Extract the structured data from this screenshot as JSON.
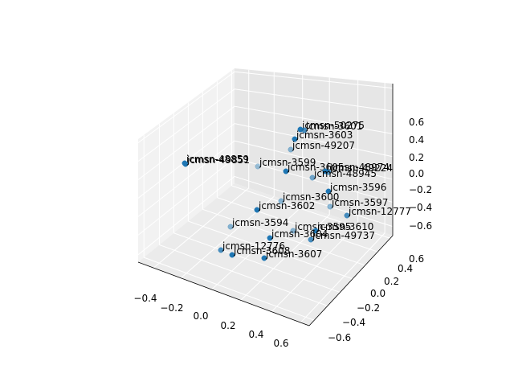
{
  "chart_data": {
    "type": "scatter",
    "projection": "3d",
    "grid": true,
    "title": "",
    "xlabel": "",
    "ylabel": "",
    "zlabel": "",
    "axis_x_ticks": [
      "−0.4",
      "−0.2",
      "0.0",
      "0.2",
      "0.4",
      "0.6"
    ],
    "axis_y_ticks": [
      "−0.6",
      "−0.4",
      "−0.2",
      "0.0",
      "0.2",
      "0.4",
      "0.6"
    ],
    "axis_z_ticks": [
      "−0.6",
      "−0.4",
      "−0.2",
      "0.0",
      "0.2",
      "0.4",
      "0.6"
    ],
    "marker_color": "#1f77b4",
    "points": [
      {
        "label": "jcmsn-50275"
      },
      {
        "label": "jcmsn-3601"
      },
      {
        "label": "jcmsn-3603"
      },
      {
        "label": "jcmsn-49207"
      },
      {
        "label": "jcmsn-48859"
      },
      {
        "label": "jcmsn-49851"
      },
      {
        "label": "jcmsn-3599"
      },
      {
        "label": "jcmsn-3605"
      },
      {
        "label": "jcmsn-48974"
      },
      {
        "label": "jcmsn-49224"
      },
      {
        "label": "jcmsn-48945"
      },
      {
        "label": "jcmsn-3596"
      },
      {
        "label": "jcmsn-3600"
      },
      {
        "label": "jcmsn-3602"
      },
      {
        "label": "jcmsn-3597"
      },
      {
        "label": "jcmsn-12777"
      },
      {
        "label": "jcmsn-3594"
      },
      {
        "label": "jcmsn-3595"
      },
      {
        "label": "jcmsn-3610"
      },
      {
        "label": "jcmsn-3604"
      },
      {
        "label": "jcmsn-49737"
      },
      {
        "label": "jcmsn-12776"
      },
      {
        "label": "jcmsn-3608"
      },
      {
        "label": "jcmsn-3607"
      }
    ]
  }
}
